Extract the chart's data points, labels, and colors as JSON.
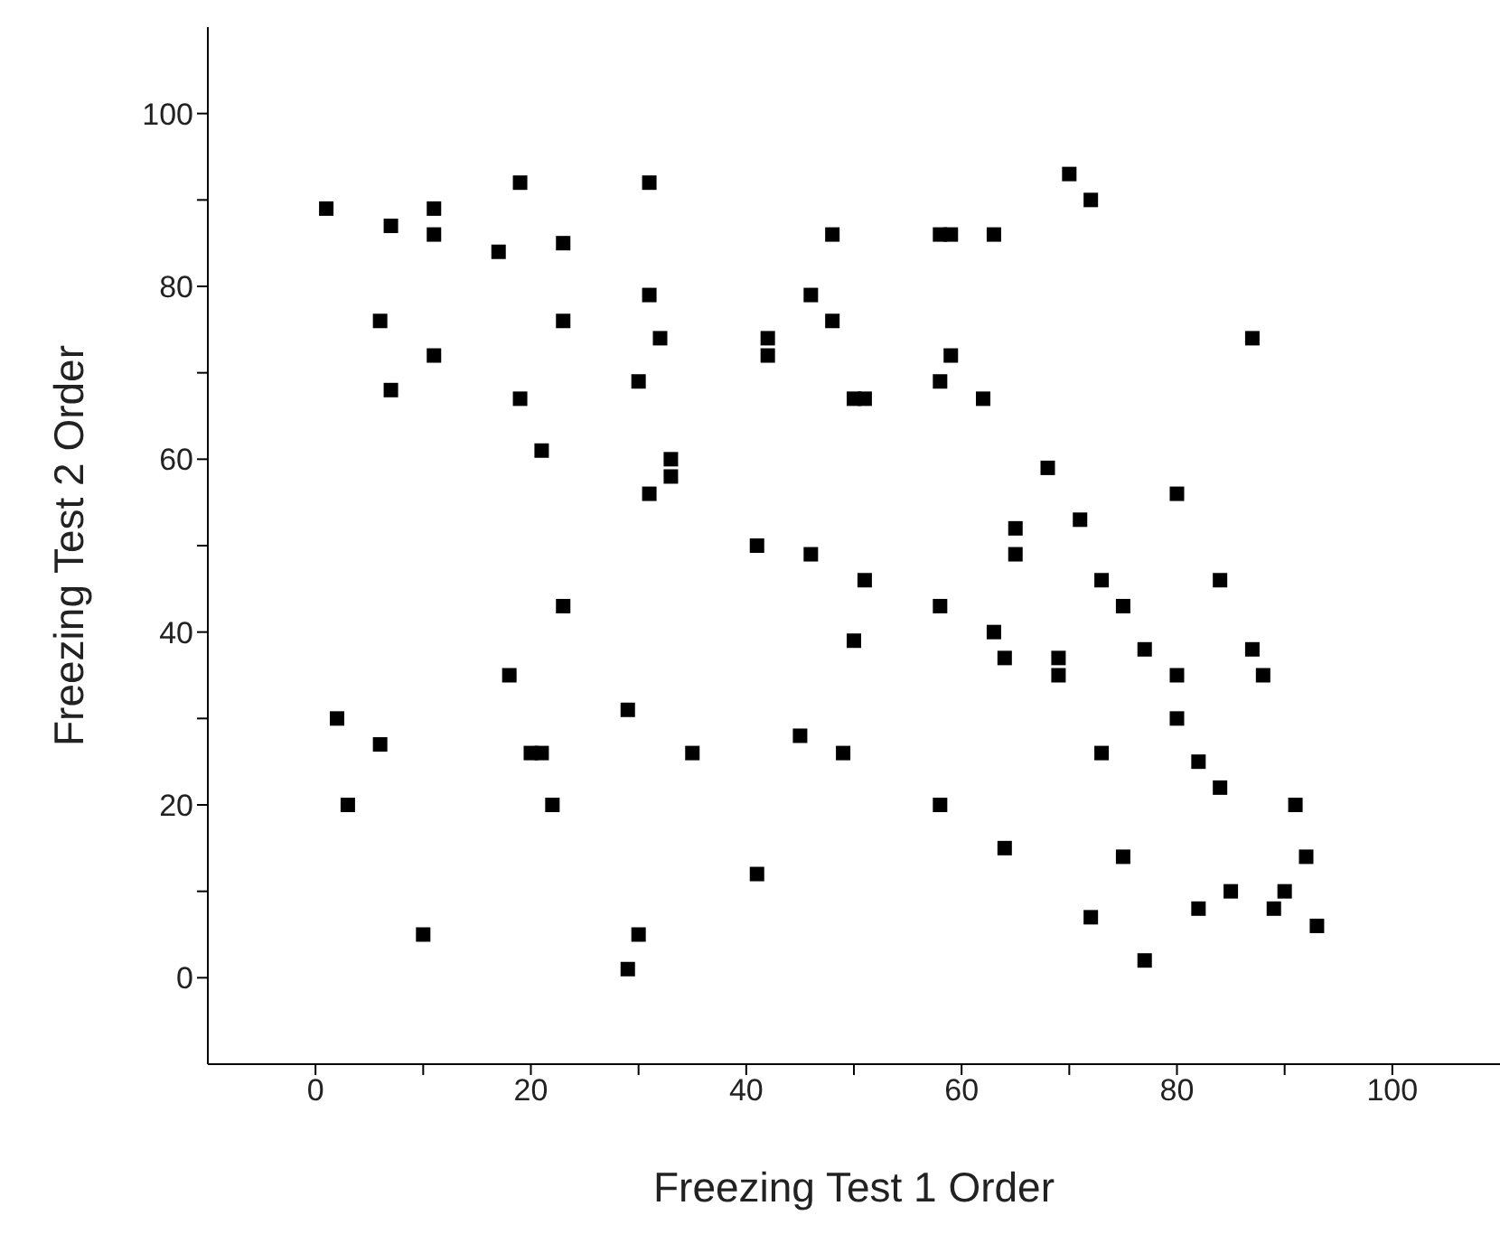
{
  "chart_data": {
    "type": "scatter",
    "xlabel": "Freezing Test 1 Order",
    "ylabel": "Freezing Test 2 Order",
    "marker": "square",
    "grid": false,
    "legend": false,
    "xlim": [
      -10,
      110
    ],
    "ylim": [
      -10,
      110
    ],
    "xticks": [
      0,
      {
        "value": 10,
        "label": null
      },
      20,
      {
        "value": 30,
        "label": null
      },
      40,
      {
        "value": 50,
        "label": null
      },
      60,
      {
        "value": 70,
        "label": null
      },
      80,
      {
        "value": 90,
        "label": null
      },
      100
    ],
    "yticks": [
      0,
      {
        "value": 10,
        "label": null
      },
      20,
      {
        "value": 30,
        "label": null
      },
      40,
      {
        "value": 50,
        "label": null
      },
      60,
      {
        "value": 70,
        "label": null
      },
      80,
      {
        "value": 90,
        "label": null
      },
      100
    ],
    "series": [
      {
        "color": "#000000",
        "x": [
          1,
          2,
          3,
          6,
          6,
          7,
          7,
          10,
          11,
          11,
          11,
          17,
          18,
          19,
          19,
          20,
          21,
          21,
          22,
          23,
          23,
          23,
          29,
          29,
          30,
          30,
          31,
          31,
          31,
          32,
          33,
          33,
          35,
          41,
          41,
          42,
          42,
          45,
          46,
          46,
          48,
          48,
          49,
          50,
          50,
          51,
          51,
          58,
          58,
          58,
          58,
          59,
          59,
          62,
          63,
          63,
          64,
          64,
          65,
          65,
          68,
          69,
          69,
          70,
          71,
          72,
          72,
          73,
          73,
          75,
          75,
          77,
          77,
          80,
          80,
          80,
          82,
          82,
          84,
          84,
          85,
          87,
          87,
          88,
          89,
          90,
          91,
          92,
          93
        ],
        "values": [
          89,
          30,
          20,
          76,
          27,
          87,
          68,
          5,
          89,
          86,
          72,
          84,
          35,
          92,
          67,
          26,
          61,
          26,
          20,
          85,
          76,
          43,
          31,
          1,
          69,
          5,
          92,
          79,
          56,
          74,
          60,
          58,
          26,
          50,
          12,
          74,
          72,
          28,
          79,
          49,
          86,
          76,
          26,
          67,
          39,
          67,
          46,
          86,
          69,
          43,
          20,
          86,
          72,
          67,
          86,
          40,
          37,
          15,
          52,
          49,
          59,
          37,
          35,
          93,
          53,
          90,
          7,
          46,
          26,
          43,
          14,
          38,
          2,
          56,
          35,
          30,
          25,
          8,
          46,
          22,
          10,
          74,
          38,
          35,
          8,
          10,
          20,
          14,
          6
        ]
      }
    ]
  }
}
